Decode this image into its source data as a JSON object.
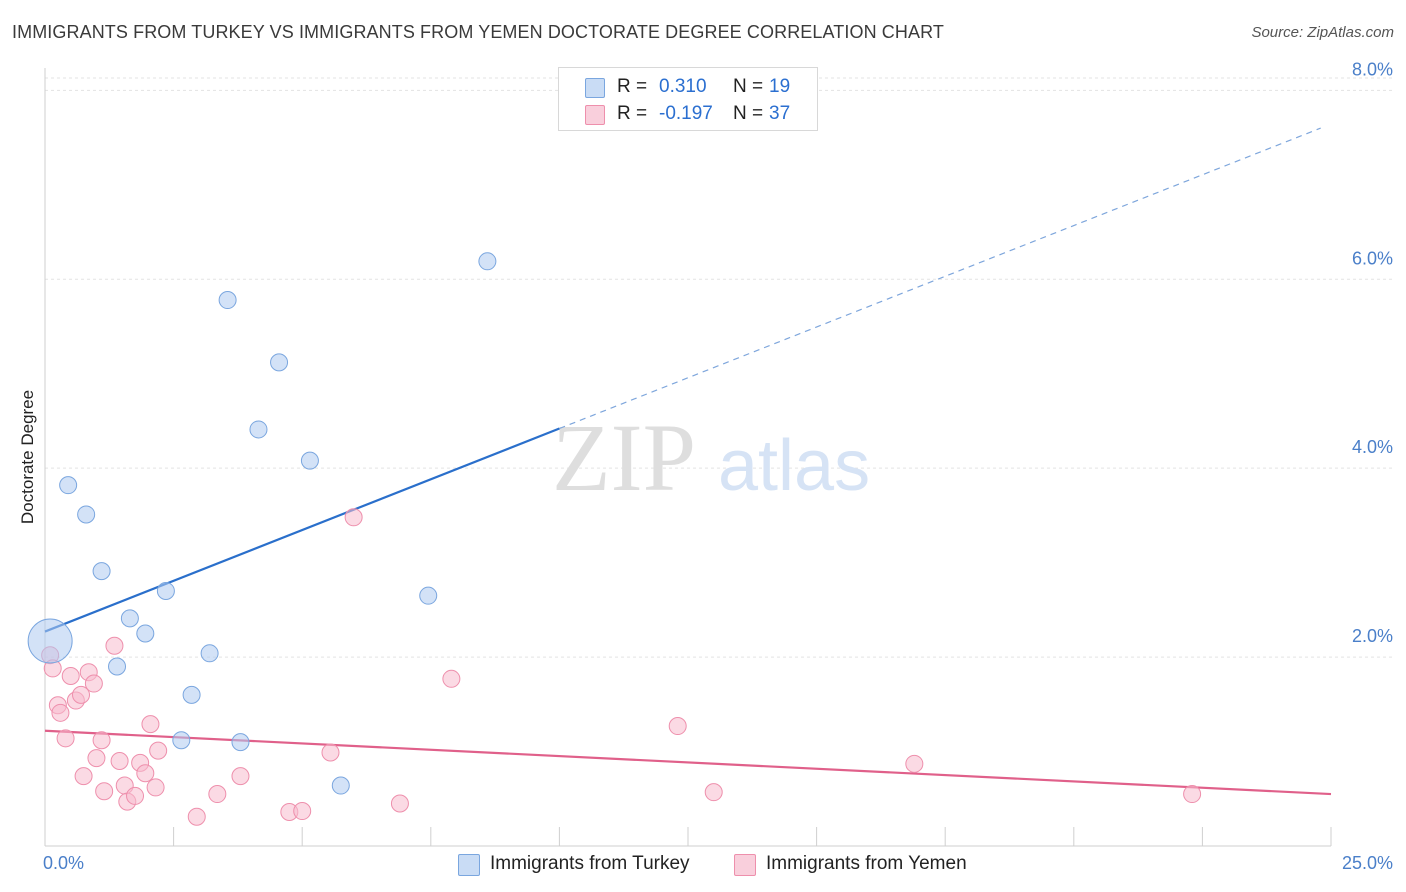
{
  "title": "IMMIGRANTS FROM TURKEY VS IMMIGRANTS FROM YEMEN DOCTORATE DEGREE CORRELATION CHART",
  "source": "Source: ZipAtlas.com",
  "watermark": {
    "zip": "ZIP",
    "atlas": "atlas"
  },
  "legend": {
    "r_label": "R =",
    "n_label": "N =",
    "rows": [
      {
        "r": "0.310",
        "n": "19",
        "color": "#aecbf0"
      },
      {
        "r": "-0.197",
        "n": "37",
        "color": "#f7bccd"
      }
    ]
  },
  "chart_data": {
    "type": "scatter",
    "title": "IMMIGRANTS FROM TURKEY VS IMMIGRANTS FROM YEMEN DOCTORATE DEGREE CORRELATION CHART",
    "xlabel": "",
    "ylabel": "Doctorate Degree",
    "xlim": [
      0,
      25
    ],
    "ylim": [
      0,
      8.3
    ],
    "x_tick_labels": [
      "0.0%",
      "25.0%"
    ],
    "y_ticks": [
      2,
      4,
      6,
      8
    ],
    "y_tick_labels": [
      "2.0%",
      "4.0%",
      "6.0%",
      "8.0%"
    ],
    "series": [
      {
        "name": "Immigrants from Turkey",
        "color": "#aecbf0",
        "stroke": "#7aa6df",
        "line_color": "#2a6fcb",
        "trend": {
          "x0": 0,
          "y0": 2.27,
          "x1": 10,
          "y1": 4.42,
          "x_dash_end": 24.8,
          "y_dash_end": 7.6
        },
        "points": [
          {
            "x": 0.1,
            "y": 2.17,
            "big": true
          },
          {
            "x": 0.45,
            "y": 3.82
          },
          {
            "x": 0.8,
            "y": 3.51
          },
          {
            "x": 1.1,
            "y": 2.91
          },
          {
            "x": 1.4,
            "y": 1.9
          },
          {
            "x": 1.65,
            "y": 2.41
          },
          {
            "x": 1.95,
            "y": 2.25
          },
          {
            "x": 2.35,
            "y": 2.7
          },
          {
            "x": 2.65,
            "y": 1.12
          },
          {
            "x": 2.85,
            "y": 1.6
          },
          {
            "x": 3.2,
            "y": 2.04
          },
          {
            "x": 3.55,
            "y": 5.78
          },
          {
            "x": 3.8,
            "y": 1.1
          },
          {
            "x": 4.15,
            "y": 4.41
          },
          {
            "x": 4.55,
            "y": 5.12
          },
          {
            "x": 5.15,
            "y": 4.08
          },
          {
            "x": 5.75,
            "y": 0.64
          },
          {
            "x": 7.45,
            "y": 2.65
          },
          {
            "x": 8.6,
            "y": 6.19
          }
        ]
      },
      {
        "name": "Immigrants from Yemen",
        "color": "#f7bccd",
        "stroke": "#ee8fac",
        "line_color": "#e0608a",
        "trend": {
          "x0": 0,
          "y0": 1.22,
          "x1": 25,
          "y1": 0.55
        },
        "points": [
          {
            "x": 0.1,
            "y": 2.02
          },
          {
            "x": 0.15,
            "y": 1.88
          },
          {
            "x": 0.25,
            "y": 1.49
          },
          {
            "x": 0.3,
            "y": 1.41
          },
          {
            "x": 0.4,
            "y": 1.14
          },
          {
            "x": 0.5,
            "y": 1.8
          },
          {
            "x": 0.6,
            "y": 1.54
          },
          {
            "x": 0.7,
            "y": 1.6
          },
          {
            "x": 0.75,
            "y": 0.74
          },
          {
            "x": 0.85,
            "y": 1.84
          },
          {
            "x": 0.95,
            "y": 1.72
          },
          {
            "x": 1.0,
            "y": 0.93
          },
          {
            "x": 1.1,
            "y": 1.12
          },
          {
            "x": 1.15,
            "y": 0.58
          },
          {
            "x": 1.35,
            "y": 2.12
          },
          {
            "x": 1.45,
            "y": 0.9
          },
          {
            "x": 1.55,
            "y": 0.64
          },
          {
            "x": 1.6,
            "y": 0.47
          },
          {
            "x": 1.75,
            "y": 0.53
          },
          {
            "x": 1.85,
            "y": 0.88
          },
          {
            "x": 1.95,
            "y": 0.77
          },
          {
            "x": 2.05,
            "y": 1.29
          },
          {
            "x": 2.15,
            "y": 0.62
          },
          {
            "x": 2.2,
            "y": 1.01
          },
          {
            "x": 2.95,
            "y": 0.31
          },
          {
            "x": 3.35,
            "y": 0.55
          },
          {
            "x": 3.8,
            "y": 0.74
          },
          {
            "x": 4.75,
            "y": 0.36
          },
          {
            "x": 5.0,
            "y": 0.37
          },
          {
            "x": 5.55,
            "y": 0.99
          },
          {
            "x": 6.0,
            "y": 3.48
          },
          {
            "x": 6.9,
            "y": 0.45
          },
          {
            "x": 7.9,
            "y": 1.77
          },
          {
            "x": 12.3,
            "y": 1.27
          },
          {
            "x": 13.0,
            "y": 0.57
          },
          {
            "x": 16.9,
            "y": 0.87
          },
          {
            "x": 22.3,
            "y": 0.55
          }
        ]
      }
    ]
  }
}
